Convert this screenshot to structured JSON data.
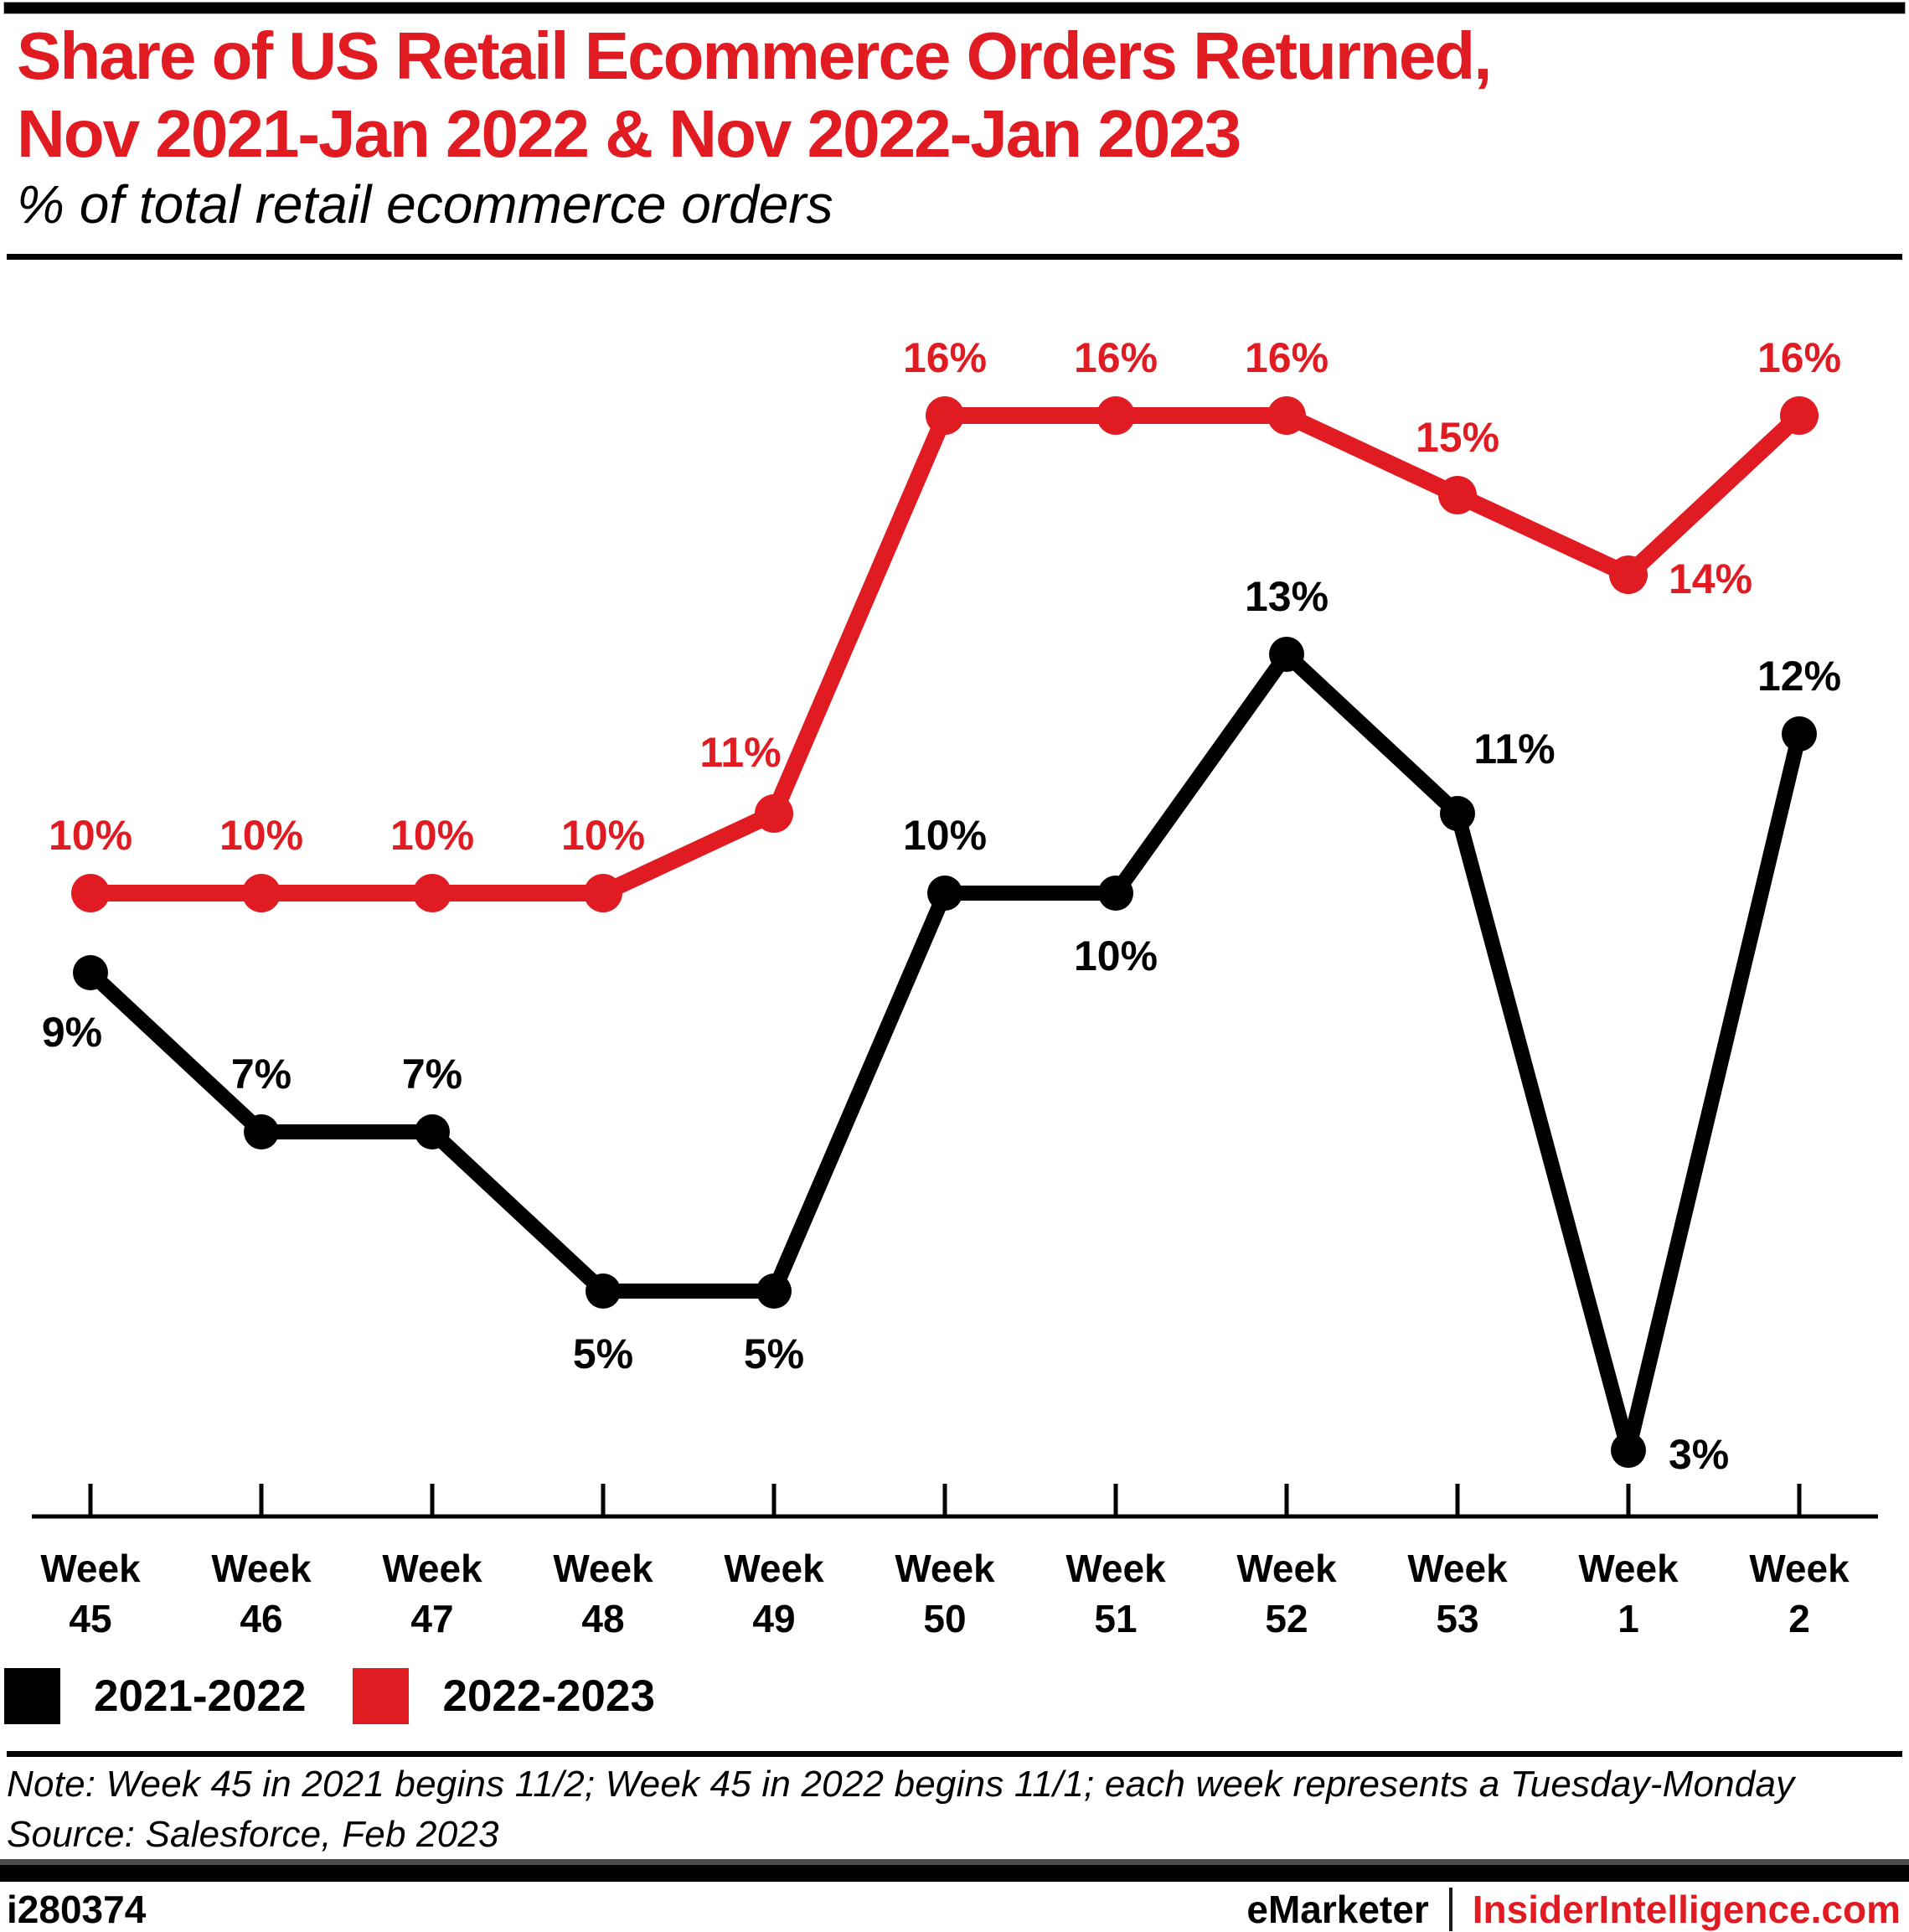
{
  "chart_data": {
    "type": "line",
    "title": "Share of US Retail Ecommerce Orders Returned, Nov 2021-Jan 2022 & Nov 2022-Jan 2023",
    "title_lines": [
      "Share of US Retail Ecommerce Orders Returned,",
      "Nov 2021-Jan 2022 & Nov 2022-Jan 2023"
    ],
    "subtitle": "% of total retail ecommerce orders",
    "category_top": "Week",
    "categories": [
      "45",
      "46",
      "47",
      "48",
      "49",
      "50",
      "51",
      "52",
      "53",
      "1",
      "2"
    ],
    "unit": "%",
    "ylim": [
      0,
      18
    ],
    "grid": false,
    "legend_position": "bottom-left",
    "series": [
      {
        "name": "2021-2022",
        "color": "#000000",
        "values": [
          9,
          7,
          7,
          5,
          5,
          10,
          10,
          13,
          11,
          3,
          12
        ],
        "label_pos": [
          "below-left",
          "above",
          "above",
          "below",
          "below",
          "above",
          "below",
          "above",
          "above-right",
          "right",
          "above"
        ]
      },
      {
        "name": "2022-2023",
        "color": "#e11b22",
        "values": [
          10,
          10,
          10,
          10,
          11,
          16,
          16,
          16,
          15,
          14,
          16
        ],
        "label_pos": [
          "above",
          "above",
          "above",
          "above",
          "above-left",
          "above",
          "above",
          "above",
          "above",
          "right",
          "above"
        ]
      }
    ]
  },
  "footnote": {
    "note": "Note: Week 45 in 2021 begins 11/2; Week 45 in 2022 begins 11/1; each week represents a Tuesday-Monday",
    "source": "Source: Salesforce, Feb 2023"
  },
  "footer": {
    "chart_id": "i280374",
    "brand": "eMarketer",
    "site": "InsiderIntelligence.com"
  }
}
